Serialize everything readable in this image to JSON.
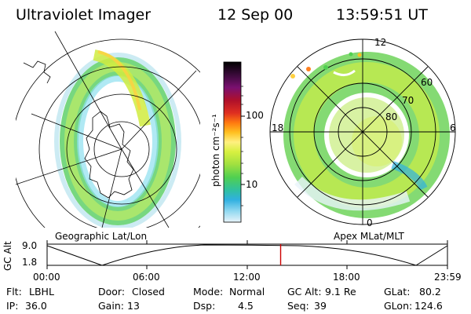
{
  "header": {
    "instrument": "Ultraviolet Imager",
    "date": "12 Sep 00",
    "time": "13:59:51 UT"
  },
  "panels": {
    "left_label": "Geographic Lat/Lon",
    "right_label": "Apex MLat/MLT"
  },
  "colorbar": {
    "unit_label": "photon cm⁻²s⁻¹",
    "ticks": [
      "100",
      "10"
    ],
    "colors": [
      "#000000",
      "#3a0a3a",
      "#7a1070",
      "#b0102a",
      "#e03020",
      "#ff7a10",
      "#ffc020",
      "#fff080",
      "#d8f040",
      "#a0e040",
      "#50d050",
      "#30c0a0",
      "#30b0e0",
      "#90d8f0",
      "#e0f0f8"
    ]
  },
  "right_grid": {
    "mlt_labels": {
      "noon": "12",
      "dusk": "18",
      "dawn": "6",
      "midnight": "0"
    },
    "lat_labels": [
      "60",
      "70",
      "80"
    ]
  },
  "altitude_strip": {
    "ylabel": "GC Alt",
    "yticks": [
      "9.0",
      "1.8"
    ],
    "xticks": [
      "00:00",
      "06:00",
      "12:00",
      "18:00",
      "23:59"
    ],
    "current_hour": 14.0,
    "marker_color": "#cc0000"
  },
  "info": {
    "flt": {
      "label": "Flt:",
      "value": "LBHL"
    },
    "ip": {
      "label": "IP:",
      "value": "36.0"
    },
    "door": {
      "label": "Door:",
      "value": "Closed"
    },
    "gain": {
      "label": "Gain:",
      "value": "13"
    },
    "mode": {
      "label": "Mode:",
      "value": "Normal"
    },
    "dsp": {
      "label": "Dsp:",
      "value": "4.5"
    },
    "gcalt": {
      "label": "GC Alt:",
      "value": "9.1 Re"
    },
    "seq": {
      "label": "Seq:",
      "value": "39"
    },
    "glat": {
      "label": "GLat:",
      "value": "80.2"
    },
    "glon": {
      "label": "GLon:",
      "value": "124.6"
    }
  }
}
